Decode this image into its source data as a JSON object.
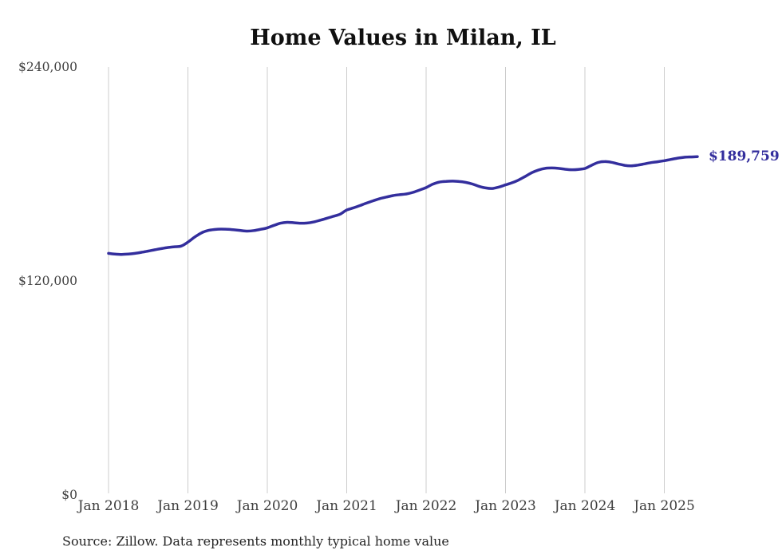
{
  "chart_data": {
    "type": "line",
    "title": "Home Values in Milan, IL",
    "source": "Source: Zillow. Data represents monthly typical home value",
    "end_label": "$189,759",
    "last_value": 189759,
    "ylim": [
      0,
      240000
    ],
    "y_ticks": [
      "$0",
      "$120,000",
      "$240,000"
    ],
    "y_tick_values": [
      0,
      120000,
      240000
    ],
    "x_ticks": [
      "Jan 2018",
      "Jan 2019",
      "Jan 2020",
      "Jan 2021",
      "Jan 2022",
      "Jan 2023",
      "Jan 2024",
      "Jan 2025"
    ],
    "months_per_tick": 12,
    "grid": "vertical-only",
    "legend": "none",
    "colors": {
      "line": "#332e9d",
      "grid": "#cccccc",
      "end_label": "#332e9d"
    },
    "x": [
      "2018-01",
      "2018-02",
      "2018-03",
      "2018-04",
      "2018-05",
      "2018-06",
      "2018-07",
      "2018-08",
      "2018-09",
      "2018-10",
      "2018-11",
      "2018-12",
      "2019-01",
      "2019-02",
      "2019-03",
      "2019-04",
      "2019-05",
      "2019-06",
      "2019-07",
      "2019-08",
      "2019-09",
      "2019-10",
      "2019-11",
      "2019-12",
      "2020-01",
      "2020-02",
      "2020-03",
      "2020-04",
      "2020-05",
      "2020-06",
      "2020-07",
      "2020-08",
      "2020-09",
      "2020-10",
      "2020-11",
      "2020-12",
      "2021-01",
      "2021-02",
      "2021-03",
      "2021-04",
      "2021-05",
      "2021-06",
      "2021-07",
      "2021-08",
      "2021-09",
      "2021-10",
      "2021-11",
      "2021-12",
      "2022-01",
      "2022-02",
      "2022-03",
      "2022-04",
      "2022-05",
      "2022-06",
      "2022-07",
      "2022-08",
      "2022-09",
      "2022-10",
      "2022-11",
      "2022-12",
      "2023-01",
      "2023-02",
      "2023-03",
      "2023-04",
      "2023-05",
      "2023-06",
      "2023-07",
      "2023-08",
      "2023-09",
      "2023-10",
      "2023-11",
      "2023-12",
      "2024-01",
      "2024-02",
      "2024-03",
      "2024-04",
      "2024-05",
      "2024-06",
      "2024-07",
      "2024-08",
      "2024-09",
      "2024-10",
      "2024-11",
      "2024-12",
      "2025-01",
      "2025-02",
      "2025-03",
      "2025-04",
      "2025-05",
      "2025-06"
    ],
    "values": [
      135500,
      135100,
      134900,
      135100,
      135500,
      136100,
      136800,
      137500,
      138200,
      138800,
      139200,
      139600,
      141800,
      144600,
      146900,
      148300,
      148900,
      149100,
      149000,
      148700,
      148300,
      148000,
      148300,
      149000,
      149800,
      151200,
      152400,
      152900,
      152700,
      152400,
      152500,
      153100,
      154100,
      155200,
      156300,
      157500,
      159800,
      161000,
      162300,
      163700,
      165000,
      166200,
      167100,
      167900,
      168400,
      168800,
      169700,
      171000,
      172400,
      174300,
      175500,
      175900,
      176000,
      175800,
      175300,
      174400,
      173100,
      172200,
      171900,
      172700,
      173900,
      175100,
      176700,
      178700,
      180800,
      182300,
      183200,
      183400,
      183200,
      182700,
      182400,
      182600,
      183100,
      184900,
      186500,
      187000,
      186600,
      185700,
      184900,
      184600,
      185000,
      185700,
      186400,
      186900,
      187500,
      188200,
      188900,
      189400,
      189600,
      189759
    ]
  }
}
